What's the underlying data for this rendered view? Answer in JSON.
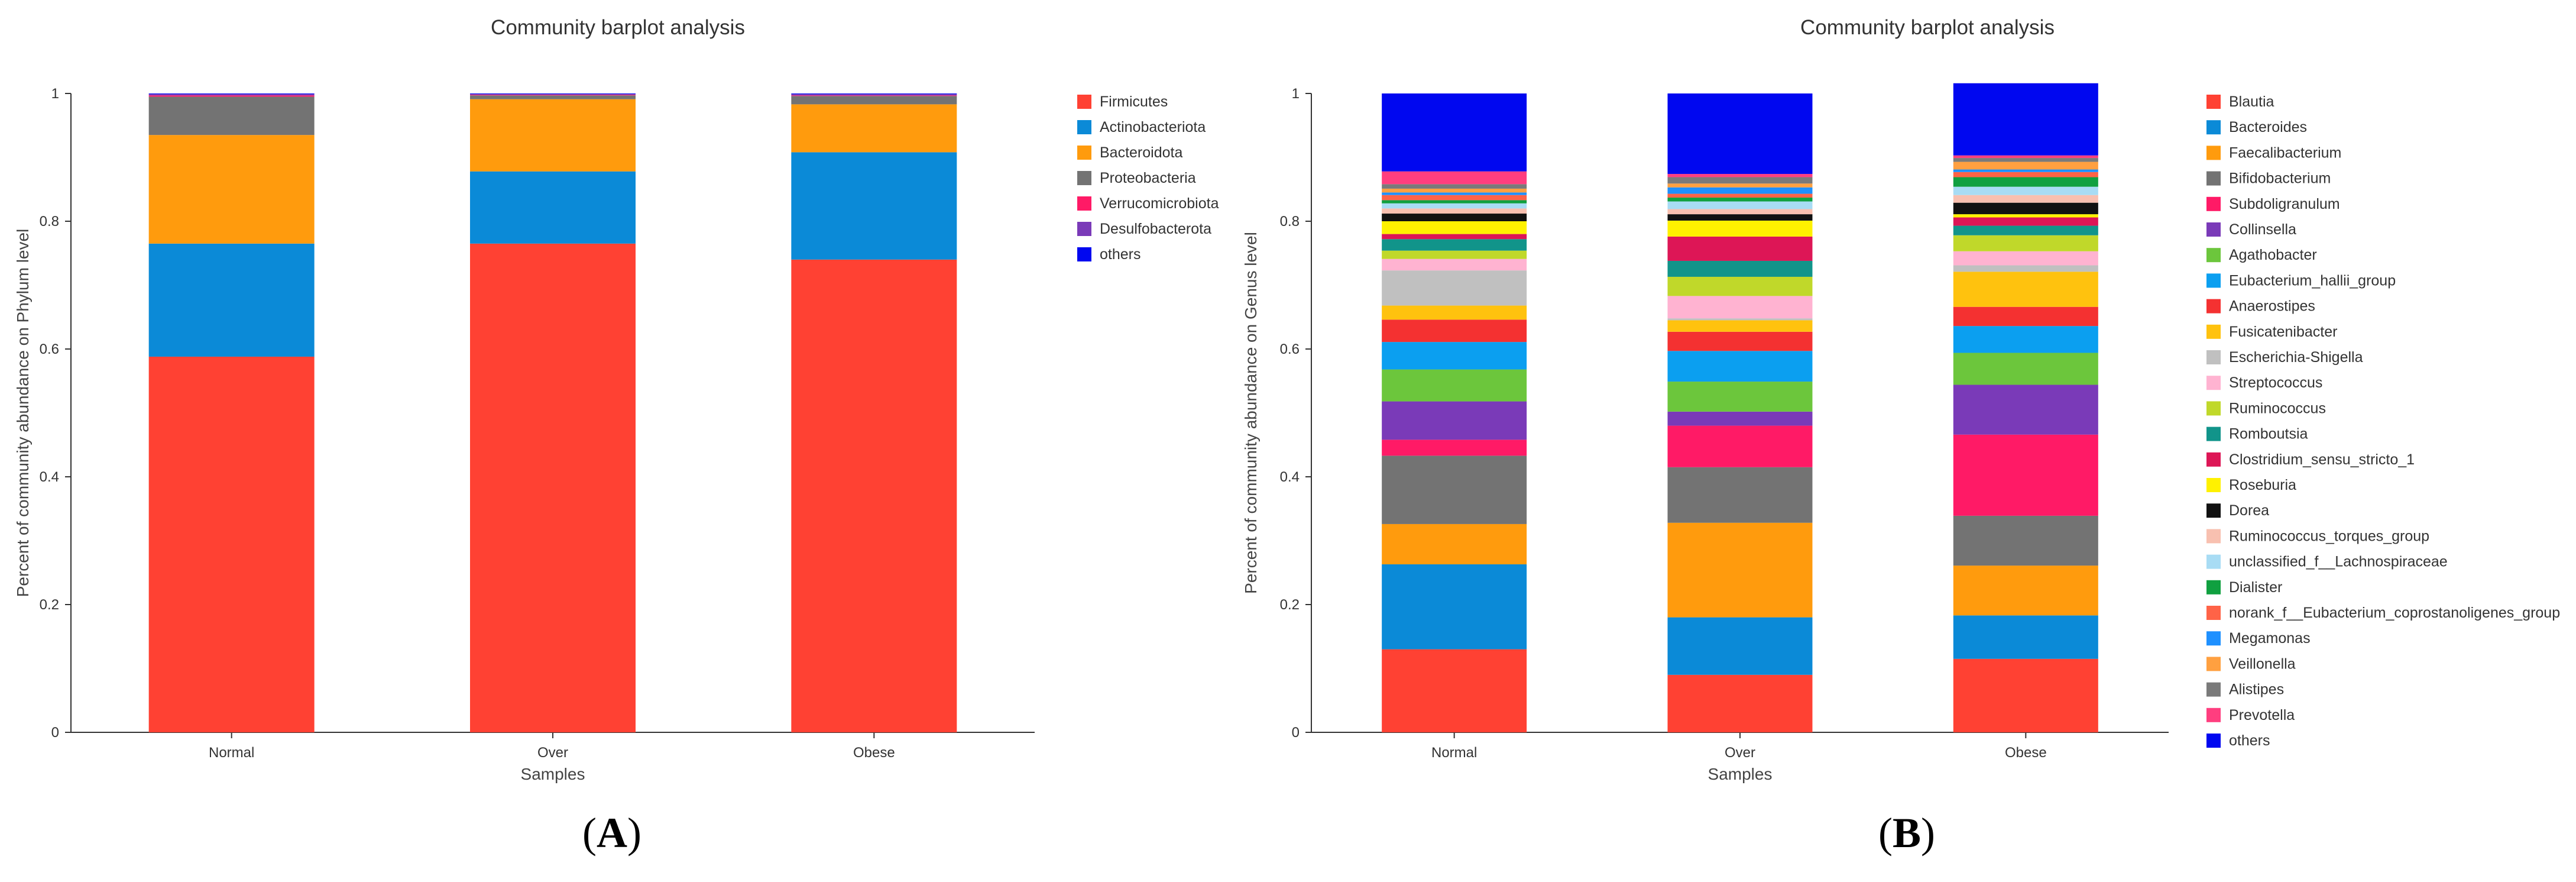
{
  "panels": [
    {
      "label_open": "(",
      "label_letter": "A",
      "label_close": ")"
    },
    {
      "label_open": "(",
      "label_letter": "B",
      "label_close": ")"
    }
  ],
  "chart_data": [
    {
      "type": "bar",
      "stacked": true,
      "title": "Community barplot analysis",
      "xlabel": "Samples",
      "ylabel": "Percent of community abundance on Phylum level",
      "ylim": [
        0,
        1
      ],
      "yticks": [
        "0",
        "0.2",
        "0.4",
        "0.6",
        "0.8",
        "1"
      ],
      "categories": [
        "Normal",
        "Over",
        "Obese"
      ],
      "legend_position": "right",
      "series": [
        {
          "name": "Firmicutes",
          "color": "#ff4133",
          "values": [
            0.588,
            0.765,
            0.74
          ]
        },
        {
          "name": "Actinobacteriota",
          "color": "#0b8ad7",
          "values": [
            0.177,
            0.113,
            0.168
          ]
        },
        {
          "name": "Bacteroidota",
          "color": "#ff9b0d",
          "values": [
            0.17,
            0.113,
            0.075
          ]
        },
        {
          "name": "Proteobacteria",
          "color": "#737373",
          "values": [
            0.06,
            0.006,
            0.013
          ]
        },
        {
          "name": "Verrucomicrobiota",
          "color": "#ff1a66",
          "values": [
            0.002,
            0.001,
            0.001
          ]
        },
        {
          "name": "Desulfobacterota",
          "color": "#7a3ab8",
          "values": [
            0.002,
            0.001,
            0.002
          ]
        },
        {
          "name": "others",
          "color": "#0007f0",
          "values": [
            0.001,
            0.001,
            0.001
          ]
        }
      ]
    },
    {
      "type": "bar",
      "stacked": true,
      "title": "Community barplot analysis",
      "xlabel": "Samples",
      "ylabel": "Percent of community abundance on Genus level",
      "ylim": [
        0,
        1
      ],
      "yticks": [
        "0",
        "0.2",
        "0.4",
        "0.6",
        "0.8",
        "1"
      ],
      "categories": [
        "Normal",
        "Over",
        "Obese"
      ],
      "legend_position": "right",
      "series": [
        {
          "name": "Blautia",
          "color": "#ff4133",
          "values": [
            0.13,
            0.09,
            0.115
          ]
        },
        {
          "name": "Bacteroides",
          "color": "#0b8ad7",
          "values": [
            0.133,
            0.09,
            0.068
          ]
        },
        {
          "name": "Faecalibacterium",
          "color": "#ff9b0d",
          "values": [
            0.063,
            0.148,
            0.078
          ]
        },
        {
          "name": "Bifidobacterium",
          "color": "#737373",
          "values": [
            0.107,
            0.087,
            0.078
          ]
        },
        {
          "name": "Subdoligranulum",
          "color": "#ff1a66",
          "values": [
            0.025,
            0.065,
            0.127
          ]
        },
        {
          "name": "Collinsella",
          "color": "#7a3ab8",
          "values": [
            0.06,
            0.022,
            0.078
          ]
        },
        {
          "name": "Agathobacter",
          "color": "#6cc63c",
          "values": [
            0.05,
            0.047,
            0.05
          ]
        },
        {
          "name": "Eubacterium_hallii_group",
          "color": "#0b9ff0",
          "values": [
            0.043,
            0.048,
            0.042
          ]
        },
        {
          "name": "Anaerostipes",
          "color": "#f43131",
          "values": [
            0.035,
            0.03,
            0.03
          ]
        },
        {
          "name": "Fusicatenibacter",
          "color": "#ffc20e",
          "values": [
            0.022,
            0.018,
            0.055
          ]
        },
        {
          "name": "Escherichia-Shigella",
          "color": "#c0c0c0",
          "values": [
            0.055,
            0.003,
            0.01
          ]
        },
        {
          "name": "Streptococcus",
          "color": "#ffb3d1",
          "values": [
            0.018,
            0.035,
            0.022
          ]
        },
        {
          "name": "Ruminococcus",
          "color": "#c0d82a",
          "values": [
            0.013,
            0.03,
            0.025
          ]
        },
        {
          "name": "Romboutsia",
          "color": "#11948a",
          "values": [
            0.018,
            0.025,
            0.015
          ]
        },
        {
          "name": "Clostridium_sensu_stricto_1",
          "color": "#dd1656",
          "values": [
            0.008,
            0.038,
            0.013
          ]
        },
        {
          "name": "Roseburia",
          "color": "#fff100",
          "values": [
            0.02,
            0.025,
            0.005
          ]
        },
        {
          "name": "Dorea",
          "color": "#111111",
          "values": [
            0.012,
            0.01,
            0.018
          ]
        },
        {
          "name": "Ruminococcus_torques_group",
          "color": "#f8c0b0",
          "values": [
            0.008,
            0.008,
            0.012
          ]
        },
        {
          "name": "unclassified_f__Lachnospiraceae",
          "color": "#a8dcf4",
          "values": [
            0.008,
            0.012,
            0.013
          ]
        },
        {
          "name": "Dialister",
          "color": "#10a040",
          "values": [
            0.005,
            0.006,
            0.015
          ]
        },
        {
          "name": "norank_f__Eubacterium_coprostanoligenes_group",
          "color": "#ff6347",
          "values": [
            0.008,
            0.006,
            0.008
          ]
        },
        {
          "name": "Megamonas",
          "color": "#1e90ff",
          "values": [
            0.004,
            0.01,
            0.004
          ]
        },
        {
          "name": "Veillonella",
          "color": "#ffa040",
          "values": [
            0.006,
            0.006,
            0.012
          ]
        },
        {
          "name": "Alistipes",
          "color": "#7a7a7a",
          "values": [
            0.007,
            0.01,
            0.006
          ]
        },
        {
          "name": "Prevotella",
          "color": "#ff3e7f",
          "values": [
            0.02,
            0.005,
            0.004
          ]
        },
        {
          "name": "others",
          "color": "#0007f0",
          "values": [
            0.122,
            0.126,
            0.113
          ]
        }
      ]
    }
  ]
}
